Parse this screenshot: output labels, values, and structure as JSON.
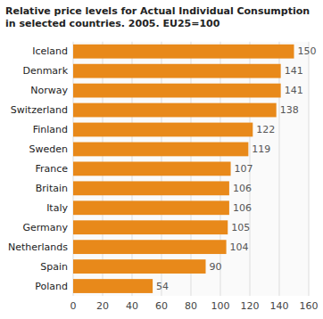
{
  "chart_data": {
    "type": "bar",
    "orientation": "horizontal",
    "title": "Relative price levels for Actual Individual Consumption\nin selected countries. 2005. EU25=100",
    "categories": [
      "Iceland",
      "Denmark",
      "Norway",
      "Switzerland",
      "Finland",
      "Sweden",
      "France",
      "Britain",
      "Italy",
      "Germany",
      "Netherlands",
      "Spain",
      "Poland"
    ],
    "values": [
      150,
      141,
      141,
      138,
      122,
      119,
      107,
      106,
      106,
      105,
      104,
      90,
      54
    ],
    "color": "#E8891A",
    "xlim": [
      0,
      160
    ],
    "xticks": [
      0,
      20,
      40,
      60,
      80,
      100,
      120,
      140,
      160
    ],
    "grid": true,
    "data_labels": true
  }
}
